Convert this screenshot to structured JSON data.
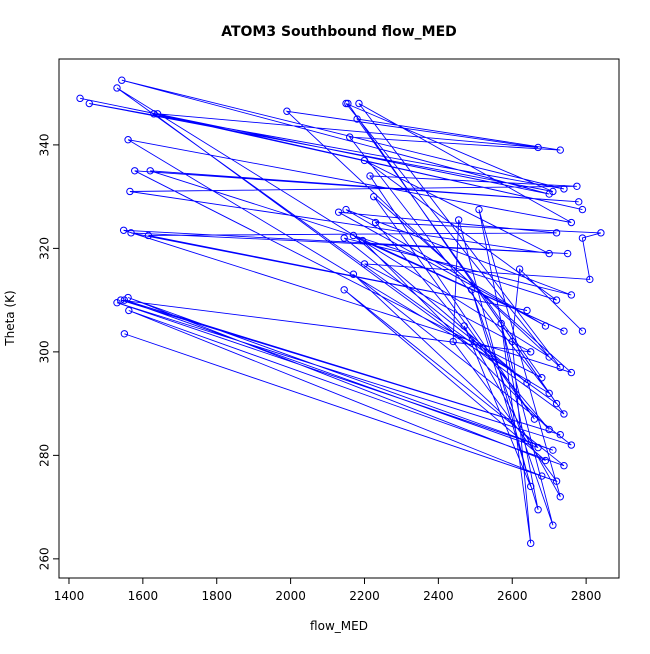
{
  "chart_data": {
    "type": "line",
    "title": "ATOM3 Southbound flow_MED",
    "xlabel": "flow_MED",
    "ylabel": "Theta (K)",
    "markers": true,
    "series": [
      {
        "color": "#0000ff",
        "x": [
          1430,
          2700,
          1543,
          2740,
          1455,
          2710,
          2150,
          2700,
          1530,
          2720,
          2155,
          2740,
          1630,
          2790,
          1640,
          2670,
          1990,
          2730,
          2185,
          2760,
          1560,
          2700,
          2160,
          2730,
          2180,
          2680,
          1578,
          2780,
          1620,
          2720,
          2200,
          2700,
          1565,
          2775,
          2215,
          2660,
          2225,
          2760,
          1548,
          2750,
          1568,
          2640,
          1615,
          2720,
          2130,
          2690,
          2150,
          2760,
          2145,
          2640,
          2170,
          2740,
          2195,
          2700,
          2230,
          2840,
          2790,
          2810,
          2200,
          2650,
          1540,
          2730,
          1550,
          2670,
          2170,
          2760,
          1530,
          2710,
          1560,
          2690,
          2145,
          2740,
          1562,
          2680,
          1550,
          2720,
          2440,
          2455,
          2650,
          2470,
          2730,
          2510,
          2670,
          2490,
          2710,
          2570,
          2650,
          2600,
          2620,
          2790
        ],
        "values": [
          349,
          330.5,
          352.5,
          331.5,
          348,
          331,
          348,
          299,
          351,
          290,
          348,
          288,
          346,
          327.5,
          346,
          339.5,
          346.5,
          297,
          348,
          325,
          341,
          292,
          341.5,
          339,
          345,
          295,
          335,
          329,
          335,
          310,
          337,
          319,
          331,
          332,
          334,
          287,
          330,
          296,
          323.5,
          319,
          323,
          308,
          322.5,
          323,
          327,
          305,
          327.5,
          311,
          322,
          294,
          322.5,
          304,
          321.5,
          285,
          325,
          323,
          322,
          314,
          317,
          300,
          310,
          284,
          310,
          281.5,
          315,
          282,
          309.5,
          281,
          310.5,
          279,
          312,
          278,
          308,
          276,
          303.5,
          275,
          302,
          325.5,
          274,
          305,
          272,
          327.5,
          269.5,
          312,
          266.5,
          305.5,
          263,
          302,
          316,
          304
        ]
      }
    ],
    "xlim": [
      1373,
      2889
    ],
    "ylim": [
      256.3,
      356.6
    ],
    "xticks": [
      1400,
      1600,
      1800,
      2000,
      2200,
      2400,
      2600,
      2800
    ],
    "yticks": [
      260,
      280,
      300,
      320,
      340
    ]
  }
}
